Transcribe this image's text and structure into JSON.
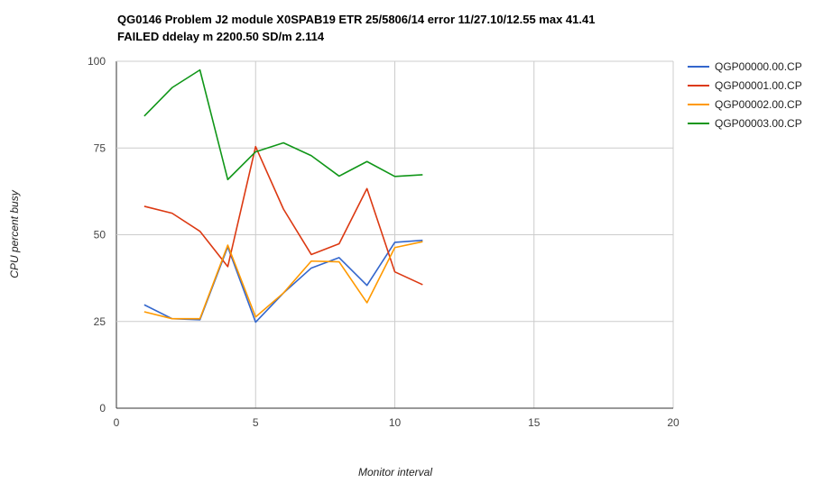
{
  "chart_data": {
    "type": "line",
    "title_lines": [
      "QG0146 Problem J2 module X0SPAB19 ETR 25/5806/14 error 11/27.10/12.55 max 41.41",
      "FAILED ddelay m 2200.50 SD/m 2.114"
    ],
    "xlabel": "Monitor interval",
    "ylabel": "CPU percent busy",
    "xlim": [
      0,
      20
    ],
    "ylim": [
      0,
      100
    ],
    "xticks": [
      0,
      5,
      10,
      15,
      20
    ],
    "yticks": [
      0,
      25,
      50,
      75,
      100
    ],
    "grid": true,
    "legend_position": "right",
    "x": [
      1,
      2,
      3,
      4,
      5,
      6,
      7,
      8,
      9,
      10,
      11
    ],
    "series": [
      {
        "name": "QGP00000.00.CP",
        "color": "#3366cc",
        "values": [
          29.8,
          25.8,
          25.5,
          46.5,
          24.8,
          33.2,
          40.4,
          43.4,
          35.4,
          47.8,
          48.4
        ]
      },
      {
        "name": "QGP00001.00.CP",
        "color": "#dc3912",
        "values": [
          58.2,
          56.2,
          51.0,
          40.8,
          75.4,
          57.4,
          44.3,
          47.4,
          63.3,
          39.3,
          35.6
        ]
      },
      {
        "name": "QGP00002.00.CP",
        "color": "#ff9900",
        "values": [
          27.8,
          25.8,
          25.8,
          47.0,
          26.3,
          33.2,
          42.4,
          42.2,
          30.4,
          46.3,
          48.0
        ]
      },
      {
        "name": "QGP00003.00.CP",
        "color": "#109618",
        "values": [
          84.2,
          92.4,
          97.5,
          65.9,
          73.9,
          76.5,
          72.8,
          66.9,
          71.1,
          66.8,
          67.3
        ]
      }
    ]
  }
}
